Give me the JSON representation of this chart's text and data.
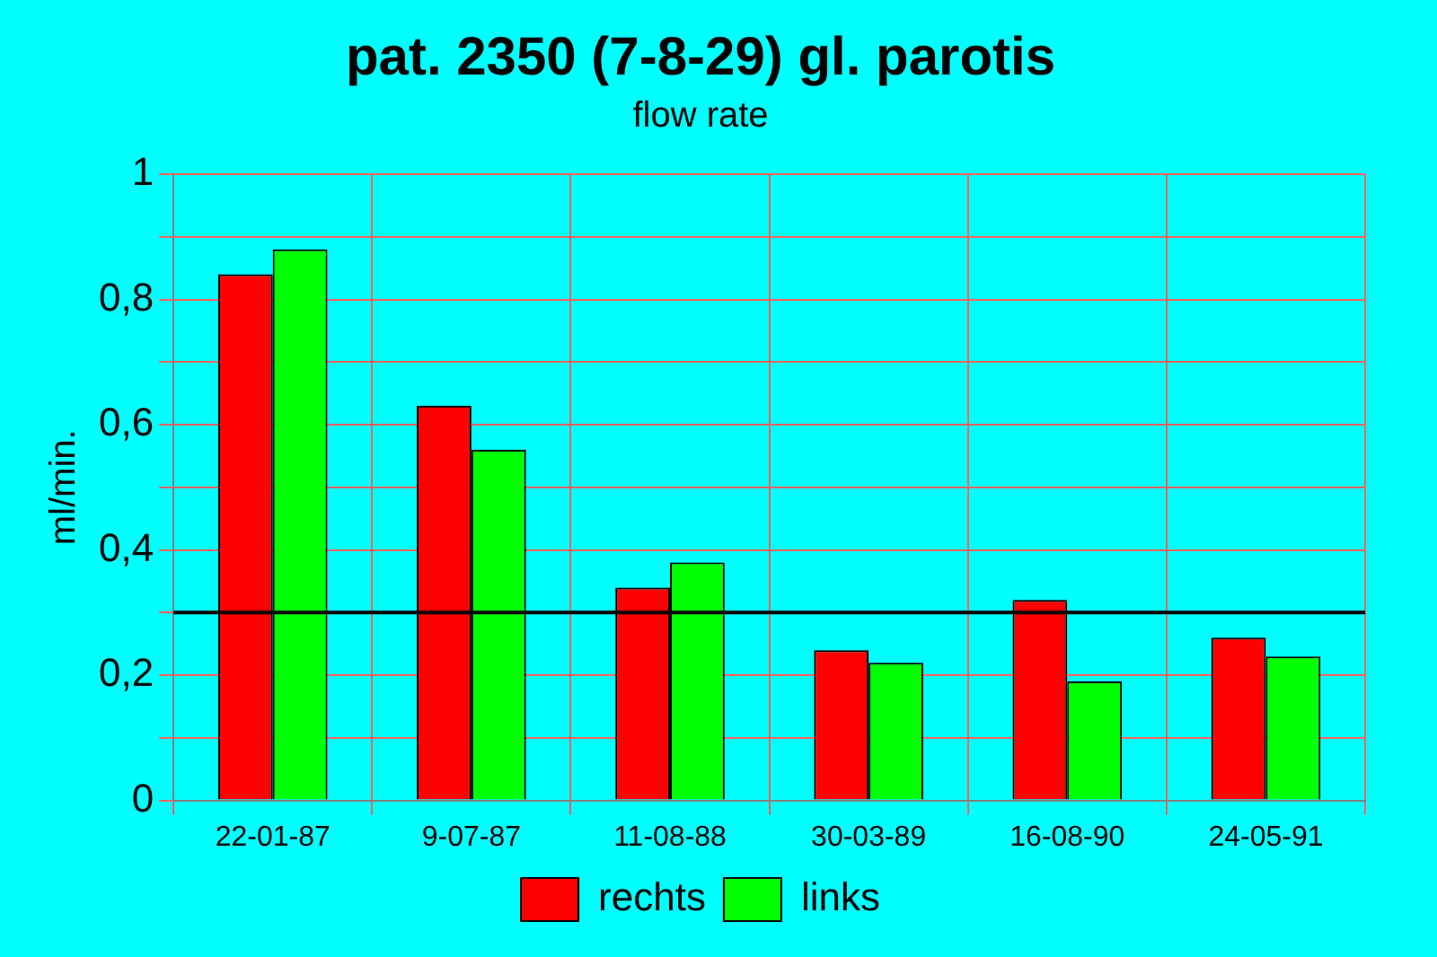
{
  "chart_data": {
    "type": "bar",
    "title": "pat. 2350 (7-8-29) gl. parotis",
    "subtitle": "flow rate",
    "ylabel": "ml/min.",
    "categories": [
      "22-01-87",
      "9-07-87",
      "11-08-88",
      "30-03-89",
      "16-08-90",
      "24-05-91"
    ],
    "series": [
      {
        "name": "rechts",
        "color": "#ff0000",
        "values": [
          0.84,
          0.63,
          0.34,
          0.24,
          0.32,
          0.26
        ]
      },
      {
        "name": "links",
        "color": "#00ff00",
        "values": [
          0.88,
          0.56,
          0.38,
          0.22,
          0.19,
          0.23
        ]
      }
    ],
    "ylim": [
      0,
      1
    ],
    "yticks": [
      {
        "value": 0,
        "label": "0"
      },
      {
        "value": 0.1,
        "label": null
      },
      {
        "value": 0.2,
        "label": "0,2"
      },
      {
        "value": 0.3,
        "label": null
      },
      {
        "value": 0.4,
        "label": "0,4"
      },
      {
        "value": 0.5,
        "label": null
      },
      {
        "value": 0.6,
        "label": "0,6"
      },
      {
        "value": 0.7,
        "label": null
      },
      {
        "value": 0.8,
        "label": "0,8"
      },
      {
        "value": 0.9,
        "label": null
      },
      {
        "value": 1,
        "label": "1"
      }
    ],
    "ref_lines": [
      {
        "axis": "y",
        "value": 0.3,
        "color": "#000000"
      }
    ],
    "grid": true,
    "legend": "bottom"
  }
}
